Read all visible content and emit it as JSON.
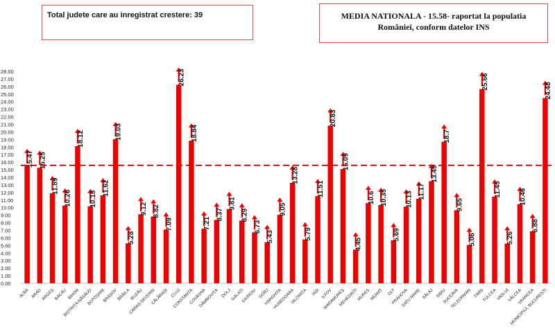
{
  "header": {
    "total_text": "Total judete care au inregistrat crestere: 39",
    "media_line1": "MEDIA NATIONALA - 15.58-  raportat la populatia",
    "media_line2": "României, conform datelor INS"
  },
  "colors": {
    "bar": "#ee0000",
    "arrow": "#ee0000",
    "average_line": "#e00000",
    "box_border": "#e24a4a"
  },
  "chart_data": {
    "type": "bar",
    "categories": [
      "ALBA",
      "ARAD",
      "ARGEȘ",
      "BACĂU",
      "BIHOR",
      "BISTRIȚA-NĂSĂUD",
      "BOTOȘANI",
      "BRAȘOV",
      "BRĂILA",
      "BUZĂU",
      "CARAȘ-SEVERIN",
      "CĂLĂRAȘI",
      "CLUJ",
      "CONSTANȚA",
      "COVASNA",
      "DÂMBOVIȚA",
      "DOLJ",
      "GALAȚI",
      "GIURGIU",
      "GORJ",
      "HARGHITA",
      "HUNEDOARA",
      "IALOMIȚA",
      "IAȘI",
      "ILFOV",
      "MARAMUREȘ",
      "MEHEDINȚI",
      "MUREȘ",
      "NEAMȚ",
      "OLT",
      "PRAHOVA",
      "SATU MARE",
      "SĂLAJ",
      "SIBIU",
      "SUCEAVA",
      "TELEORMAN",
      "TIMIȘ",
      "TULCEA",
      "VASLUI",
      "VÂLCEA",
      "VRANCEA",
      "MUNICIPIUL BUCUREȘTI"
    ],
    "values": [
      15.47,
      15.25,
      11.89,
      10.26,
      18.12,
      10.18,
      11.62,
      19.03,
      5.28,
      9.12,
      8.82,
      7.09,
      26.23,
      18.84,
      7.21,
      8.37,
      9.81,
      8.29,
      6.73,
      5.43,
      9.05,
      13.28,
      5.79,
      11.51,
      20.83,
      15.09,
      4.45,
      10.6,
      10.35,
      5.69,
      10.13,
      11.17,
      13.49,
      18.7,
      9.65,
      5.06,
      25.66,
      11.45,
      5.26,
      10.46,
      6.88,
      24.48
    ],
    "value_labels": [
      "15.47",
      "15.25",
      "11.89",
      "10.26",
      "18.12",
      "10.18",
      "11.62",
      "19.03",
      "5.28",
      "9.12",
      "8.82",
      "7.09",
      "26.23",
      "18.84",
      "7.21",
      "8.37",
      "9.81",
      "8.29",
      "6.73",
      "5.43",
      "9.05",
      "13.28",
      "5.79",
      "11.51",
      "20.83",
      "15.09",
      "4.45",
      "10.6",
      "10.35",
      "5.69",
      "10.13",
      "11.17",
      "13.49",
      "18.7",
      "9.65",
      "5.06",
      "25.66",
      "11.45",
      "5.26",
      "10.46",
      "6.88",
      "24.48"
    ],
    "up_arrows": true,
    "reference_line": 15.58,
    "ylim": [
      0,
      28
    ],
    "ytick_step": 1,
    "yticks": [
      "0.00",
      "1.00",
      "2.00",
      "3.00",
      "4.00",
      "5.00",
      "6.00",
      "7.00",
      "8.00",
      "9.00",
      "10.00",
      "11.00",
      "12.00",
      "13.00",
      "14.00",
      "15.00",
      "16.00",
      "17.00",
      "18.00",
      "19.00",
      "20.00",
      "21.00",
      "22.00",
      "23.00",
      "24.00",
      "25.00",
      "26.00",
      "27.00",
      "28.00"
    ],
    "grid": false,
    "legend": "none"
  }
}
